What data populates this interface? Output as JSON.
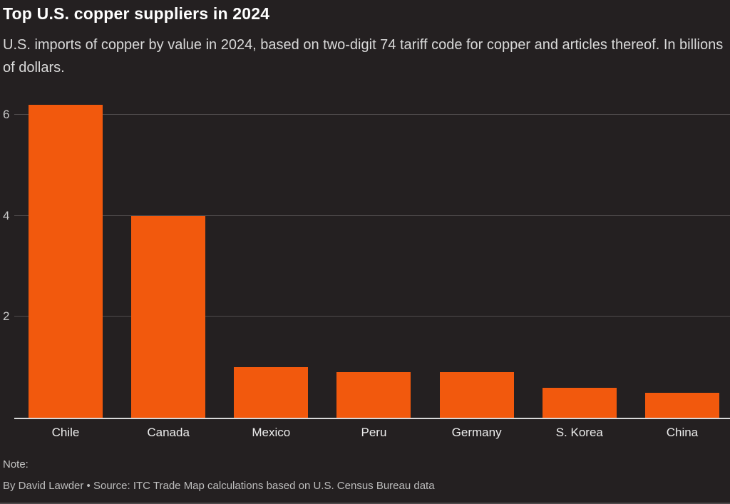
{
  "header": {
    "title": "Top U.S. copper suppliers in 2024",
    "subtitle": "U.S. imports of copper by value in 2024, based on two-digit 74 tariff code for copper and articles thereof. In billions of dollars."
  },
  "chart_data": {
    "type": "bar",
    "title": "Top U.S. copper suppliers in 2024",
    "categories": [
      "Chile",
      "Canada",
      "Mexico",
      "Peru",
      "Germany",
      "S. Korea",
      "China"
    ],
    "values": [
      6.2,
      4.0,
      1.0,
      0.9,
      0.9,
      0.6,
      0.5
    ],
    "xlabel": "",
    "ylabel": "",
    "units": "billions of dollars",
    "ylim": [
      0,
      6.4
    ],
    "yticks": [
      2,
      4,
      6
    ],
    "grid": true,
    "legend": "none",
    "bar_color": "#f2590d",
    "background_color": "#242021",
    "gridline_color": "#504c4d",
    "baseline_color": "#d9d9d9"
  },
  "footer": {
    "note_label": "Note:",
    "byline": "By David Lawder • Source: ITC Trade Map calculations based on U.S. Census Bureau data"
  }
}
